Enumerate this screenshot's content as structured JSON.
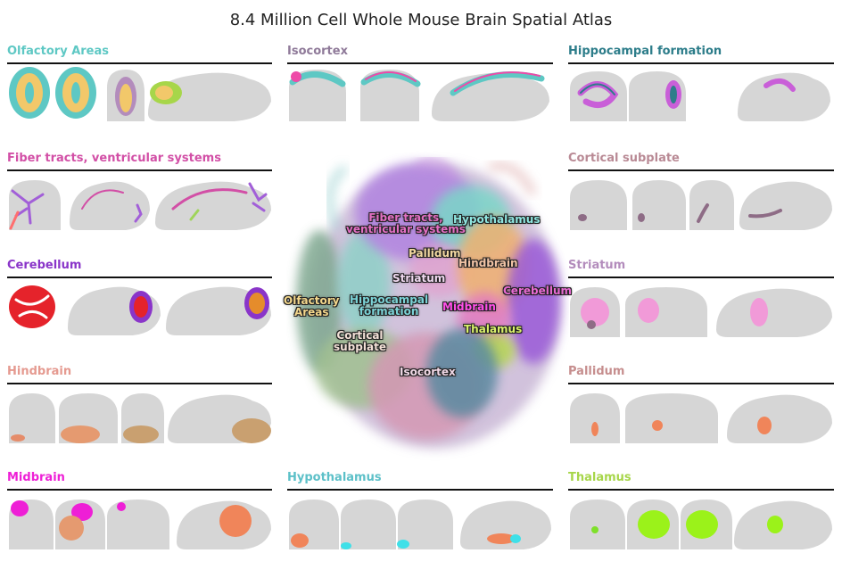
{
  "title": "8.4 Million Cell Whole Mouse Brain Spatial Atlas",
  "colors": {
    "olfactory": "#5ec8c4",
    "olfactory_fill": "#f2c86a",
    "isocortex": "#8f7a99",
    "hippocampal": "#2d7d8a",
    "fiber": "#d24fa6",
    "subplate": "#b98a95",
    "cerebellum": "#8a35c9",
    "striatum": "#b38cbc",
    "hindbrain": "#e59a90",
    "pallidum": "#c68e8e",
    "midbrain": "#ee1fd6",
    "hypothalamus": "#5cc0c8",
    "thalamus": "#a7d64a",
    "tissue": "#d6d6d6"
  },
  "panels": [
    {
      "id": "olfactory",
      "label": "Olfactory Areas",
      "color": "#5ec8c4"
    },
    {
      "id": "isocortex",
      "label": "Isocortex",
      "color": "#8f7a99"
    },
    {
      "id": "hippocampal",
      "label": "Hippocampal formation",
      "color": "#2d7d8a"
    },
    {
      "id": "fiber",
      "label": "Fiber tracts, ventricular systems",
      "color": "#d24fa6"
    },
    {
      "id": "subplate",
      "label": "Cortical subplate",
      "color": "#b98a95"
    },
    {
      "id": "cerebellum",
      "label": "Cerebellum",
      "color": "#8a35c9"
    },
    {
      "id": "striatum",
      "label": "Striatum",
      "color": "#b38cbc"
    },
    {
      "id": "hindbrain",
      "label": "Hindbrain",
      "color": "#e59a90"
    },
    {
      "id": "pallidum",
      "label": "Pallidum",
      "color": "#c68e8e"
    },
    {
      "id": "midbrain",
      "label": "Midbrain",
      "color": "#ee1fd6"
    },
    {
      "id": "hypothalamus",
      "label": "Hypothalamus",
      "color": "#5cc0c8"
    },
    {
      "id": "thalamus",
      "label": "Thalamus",
      "color": "#a7d64a"
    }
  ],
  "umap_labels": [
    {
      "id": "fiber",
      "text": "Fiber tracts,\nventricular systems",
      "color": "#e36fc3"
    },
    {
      "id": "hypothalamus",
      "text": "Hypothalamus",
      "color": "#8fe6e0"
    },
    {
      "id": "pallidum",
      "text": "Pallidum",
      "color": "#f1d7a0"
    },
    {
      "id": "hindbrain",
      "text": "Hindbrain",
      "color": "#f1c3a5"
    },
    {
      "id": "striatum",
      "text": "Striatum",
      "color": "#efd8ef"
    },
    {
      "id": "olfactory",
      "text": "Olfactory\nAreas",
      "color": "#f3d78c"
    },
    {
      "id": "hippocampal",
      "text": "Hippocampal\nformation",
      "color": "#7ad2d6"
    },
    {
      "id": "cerebellum",
      "text": "Cerebellum",
      "color": "#e86ad2"
    },
    {
      "id": "midbrain",
      "text": "Midbrain",
      "color": "#ff4fe8"
    },
    {
      "id": "thalamus",
      "text": "Thalamus",
      "color": "#d9f06a"
    },
    {
      "id": "subplate",
      "text": "Cortical\nsubplate",
      "color": "#f2e0d6"
    },
    {
      "id": "isocortex",
      "text": "Isocortex",
      "color": "#f0d8e6"
    }
  ]
}
